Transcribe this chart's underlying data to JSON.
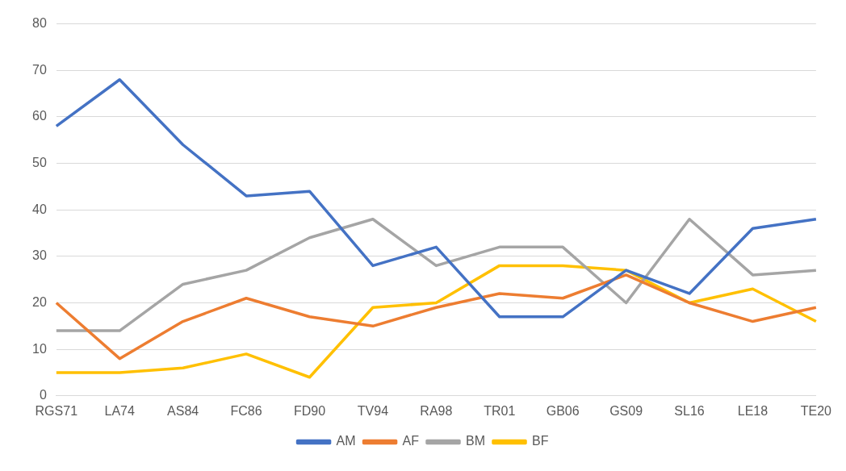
{
  "chart_data": {
    "type": "line",
    "categories": [
      "RGS71",
      "LA74",
      "AS84",
      "FC86",
      "FD90",
      "TV94",
      "RA98",
      "TR01",
      "GB06",
      "GS09",
      "SL16",
      "LE18",
      "TE20"
    ],
    "series": [
      {
        "name": "AM",
        "color": "#4472c4",
        "values": [
          58,
          68,
          54,
          43,
          44,
          28,
          32,
          17,
          17,
          27,
          22,
          36,
          38
        ]
      },
      {
        "name": "AF",
        "color": "#ed7d31",
        "values": [
          20,
          8,
          16,
          21,
          17,
          15,
          19,
          22,
          21,
          26,
          20,
          16,
          19
        ]
      },
      {
        "name": "BM",
        "color": "#a5a5a5",
        "values": [
          14,
          14,
          24,
          27,
          34,
          38,
          28,
          32,
          32,
          20,
          38,
          26,
          27
        ]
      },
      {
        "name": "BF",
        "color": "#ffc000",
        "values": [
          5,
          5,
          6,
          9,
          4,
          19,
          20,
          28,
          28,
          27,
          20,
          23,
          16
        ]
      }
    ],
    "ylim": [
      0,
      80
    ],
    "yticks": [
      0,
      10,
      20,
      30,
      40,
      50,
      60,
      70,
      80
    ],
    "grid": "y",
    "legend": "bottom",
    "marker": "none",
    "line_style": "solid"
  }
}
